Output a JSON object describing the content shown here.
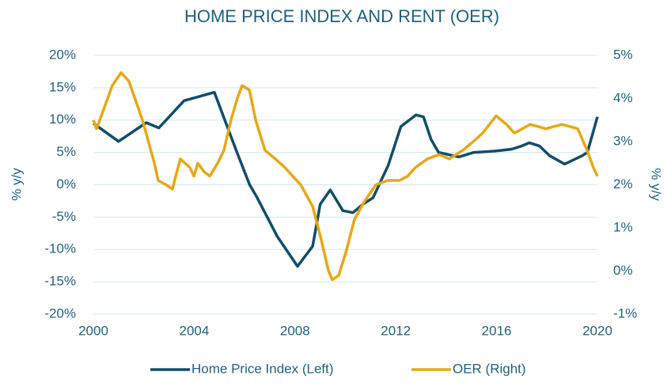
{
  "chart_data": {
    "type": "line",
    "title": "HOME PRICE INDEX AND RENT (OER)",
    "y_label": "% y/y",
    "y2_label": "% y/y",
    "xlim": [
      2000,
      2020
    ],
    "xticks": [
      2000,
      2004,
      2008,
      2012,
      2016,
      2020
    ],
    "ylim": [
      -20,
      20
    ],
    "yticks": [
      {
        "value": -20,
        "label": "-20%"
      },
      {
        "value": -15,
        "label": "-15%"
      },
      {
        "value": -10,
        "label": "-10%"
      },
      {
        "value": -5,
        "label": "-5%"
      },
      {
        "value": 0,
        "label": "0%"
      },
      {
        "value": 5,
        "label": "5%"
      },
      {
        "value": 10,
        "label": "10%"
      },
      {
        "value": 15,
        "label": "15%"
      },
      {
        "value": 20,
        "label": "20%"
      }
    ],
    "y2lim": [
      -1,
      5
    ],
    "y2ticks": [
      {
        "value": -1,
        "label": "-1%"
      },
      {
        "value": 0,
        "label": "0%"
      },
      {
        "value": 1,
        "label": "1%"
      },
      {
        "value": 2,
        "label": "2%"
      },
      {
        "value": 3,
        "label": "3%"
      },
      {
        "value": 4,
        "label": "4%"
      },
      {
        "value": 5,
        "label": "5%"
      }
    ],
    "grid": true,
    "legend": "bottom",
    "series": [
      {
        "name": "Home Price Index (Left)",
        "color": "#114d69",
        "x": [
          2000,
          2001,
          2002.1,
          2002.6,
          2003.6,
          2004.8,
          2005.7,
          2006.2,
          2006.5,
          2007.3,
          2008.1,
          2008.7,
          2009,
          2009.4,
          2009.9,
          2010.3,
          2010.7,
          2011.1,
          2011.7,
          2012.2,
          2012.8,
          2013.1,
          2013.4,
          2013.7,
          2014.5,
          2015.1,
          2015.9,
          2016.6,
          2017,
          2017.3,
          2017.7,
          2018.1,
          2018.7,
          2019.4,
          2019.6,
          2020
        ],
        "values": [
          9.5,
          6.7,
          9.6,
          8.8,
          13,
          14.3,
          5,
          0,
          -2,
          -8,
          -12.6,
          -9.5,
          -3,
          -0.8,
          -4,
          -4.3,
          -3,
          -2,
          3,
          9,
          10.8,
          10.5,
          7,
          5,
          4.3,
          5,
          5.2,
          5.5,
          6,
          6.5,
          6,
          4.5,
          3.2,
          4.5,
          5,
          10.5
        ]
      },
      {
        "name": "OER (Right)",
        "color": "#e6a817",
        "axis": "y2",
        "x": [
          2000,
          2000.13,
          2000.75,
          2001.1,
          2001.41,
          2001.95,
          2002.42,
          2002.57,
          2002.89,
          2003.14,
          2003.27,
          2003.45,
          2003.83,
          2003.99,
          2004.14,
          2004.4,
          2004.62,
          2004.93,
          2005.18,
          2005.46,
          2005.71,
          2005.9,
          2006.19,
          2006.44,
          2006.81,
          2007.22,
          2007.6,
          2007.91,
          2008.23,
          2008.7,
          2009.01,
          2009.33,
          2009.48,
          2009.74,
          2010.05,
          2010.36,
          2010.74,
          2011.21,
          2011.68,
          2012.15,
          2012.47,
          2012.78,
          2013.25,
          2013.72,
          2014.13,
          2014.66,
          2015.07,
          2015.45,
          2015.98,
          2016.39,
          2016.71,
          2017.02,
          2017.33,
          2017.96,
          2018.59,
          2019.22,
          2019.59,
          2019.84,
          2020
        ],
        "values": [
          3.5,
          3.3,
          4.3,
          4.6,
          4.4,
          3.5,
          2.5,
          2.1,
          2.0,
          1.9,
          2.2,
          2.6,
          2.4,
          2.2,
          2.5,
          2.3,
          2.2,
          2.5,
          2.8,
          3.5,
          4.0,
          4.3,
          4.2,
          3.5,
          2.8,
          2.6,
          2.4,
          2.2,
          2.0,
          1.5,
          0.8,
          0,
          -0.2,
          -0.1,
          0.5,
          1.2,
          1.6,
          2.0,
          2.1,
          2.1,
          2.2,
          2.4,
          2.6,
          2.7,
          2.6,
          2.8,
          3.0,
          3.2,
          3.6,
          3.4,
          3.2,
          3.3,
          3.4,
          3.3,
          3.4,
          3.3,
          2.8,
          2.4,
          2.2
        ]
      }
    ]
  }
}
